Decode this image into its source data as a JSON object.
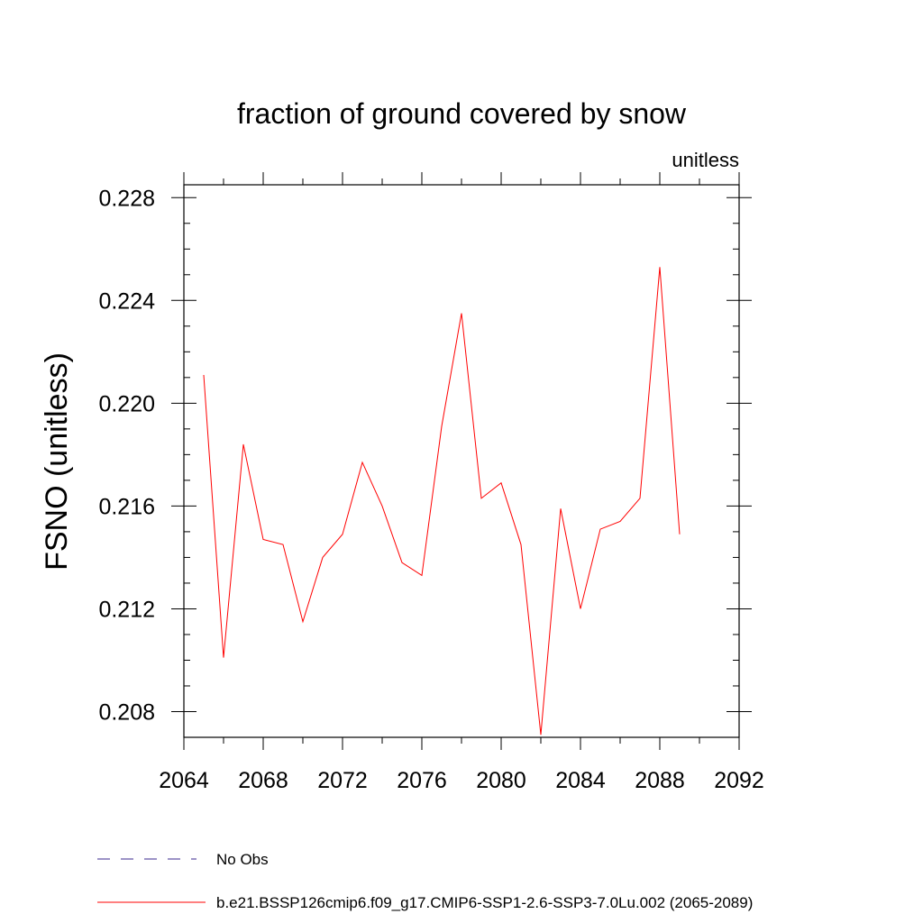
{
  "chart_data": {
    "type": "line",
    "title": "fraction of ground covered by snow",
    "units_label": "unitless",
    "xlabel": "",
    "ylabel": "FSNO  (unitless)",
    "xlim": [
      2064,
      2092
    ],
    "ylim": [
      0.207,
      0.2285
    ],
    "x_ticks": [
      2064,
      2068,
      2072,
      2076,
      2080,
      2084,
      2088,
      2092
    ],
    "y_ticks": [
      0.208,
      0.212,
      0.216,
      0.22,
      0.224,
      0.228
    ],
    "x_minor_step": 2,
    "y_minor_step": 0.001,
    "legend_position": "bottom-left",
    "series": [
      {
        "name": "No Obs",
        "color": "#3b2a8f",
        "dash": "dashed",
        "x": [],
        "values": []
      },
      {
        "name": "b.e21.BSSP126cmip6.f09_g17.CMIP6-SSP1-2.6-SSP3-7.0Lu.002 (2065-2089)",
        "color": "#ff0000",
        "dash": "solid",
        "x": [
          2065,
          2066,
          2067,
          2068,
          2069,
          2070,
          2071,
          2072,
          2073,
          2074,
          2075,
          2076,
          2077,
          2078,
          2079,
          2080,
          2081,
          2082,
          2083,
          2084,
          2085,
          2086,
          2087,
          2088,
          2089
        ],
        "values": [
          0.2211,
          0.2101,
          0.2184,
          0.2147,
          0.2145,
          0.2115,
          0.214,
          0.2149,
          0.2177,
          0.216,
          0.2138,
          0.2133,
          0.2191,
          0.2235,
          0.2163,
          0.2169,
          0.2145,
          0.2071,
          0.2159,
          0.212,
          0.2151,
          0.2154,
          0.2163,
          0.2253,
          0.2149
        ]
      }
    ]
  }
}
